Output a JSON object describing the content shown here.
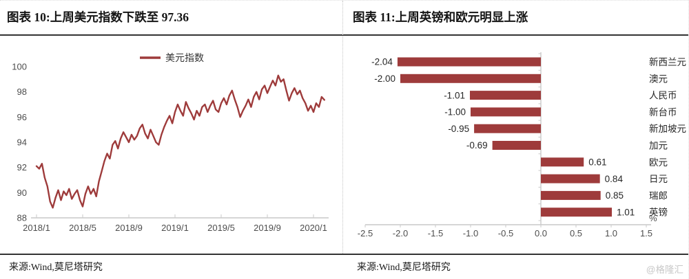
{
  "page": {
    "watermark": "@格隆汇"
  },
  "panels": [
    {
      "title": "图表 10:上周美元指数下跌至 97.36",
      "source": "来源:Wind,莫尼塔研究"
    },
    {
      "title": "图表 11:上周英镑和欧元明显上涨",
      "source": "来源:Wind,莫尼塔研究"
    }
  ],
  "chart_data": [
    {
      "type": "line",
      "title": "上周美元指数下跌至 97.36",
      "legend": "美元指数",
      "series": [
        {
          "name": "美元指数",
          "values": [
            92.1,
            91.9,
            92.3,
            91.2,
            90.5,
            89.3,
            88.8,
            89.6,
            90.2,
            89.4,
            90.1,
            89.8,
            90.3,
            89.5,
            89.9,
            90.2,
            89.4,
            88.9,
            89.9,
            90.5,
            89.9,
            90.3,
            89.7,
            90.9,
            91.7,
            92.5,
            93.1,
            92.7,
            93.8,
            94.1,
            93.5,
            94.3,
            94.8,
            94.4,
            94.0,
            94.6,
            94.2,
            94.5,
            95.1,
            95.4,
            94.7,
            94.3,
            95.0,
            94.5,
            94.0,
            93.8,
            94.6,
            95.2,
            95.7,
            96.1,
            95.5,
            96.4,
            97.0,
            96.5,
            96.1,
            97.2,
            96.7,
            96.3,
            95.8,
            96.5,
            96.1,
            96.8,
            97.0,
            96.4,
            96.9,
            97.3,
            96.6,
            96.4,
            97.1,
            97.5,
            97.0,
            97.7,
            98.1,
            97.4,
            96.8,
            96.0,
            96.5,
            96.9,
            97.4,
            96.8,
            97.6,
            98.0,
            97.4,
            98.2,
            98.5,
            97.9,
            98.4,
            98.9,
            98.5,
            99.3,
            98.8,
            99.0,
            98.1,
            97.3,
            97.9,
            98.3,
            97.8,
            98.1,
            97.5,
            97.1,
            96.5,
            96.9,
            96.4,
            97.1,
            96.8,
            97.6,
            97.36
          ]
        }
      ],
      "x_tick_labels": [
        "2018/1",
        "2018/5",
        "2018/9",
        "2019/1",
        "2019/5",
        "2019/9",
        "2020/1"
      ],
      "y_ticks": [
        100,
        98,
        96,
        94,
        92,
        90,
        88
      ],
      "ylim": [
        88,
        100
      ],
      "line_color": "#9E3B3B",
      "latest_value": 97.36
    },
    {
      "type": "bar",
      "orientation": "horizontal",
      "title": "上周英镑和欧元明显上涨",
      "categories": [
        "新西兰元",
        "澳元",
        "人民币",
        "新台币",
        "新加坡元",
        "加元",
        "欧元",
        "日元",
        "瑞郎",
        "英镑"
      ],
      "values": [
        -2.04,
        -2.0,
        -1.01,
        -1.0,
        -0.95,
        -0.69,
        0.61,
        0.84,
        0.85,
        1.01
      ],
      "value_labels": [
        "-2.04",
        "-2.00",
        "-1.01",
        "-1.00",
        "-0.95",
        "-0.69",
        "0.61",
        "0.84",
        "0.85",
        "1.01"
      ],
      "x_ticks": [
        -2.5,
        -2.0,
        -1.5,
        -1.0,
        -0.5,
        0.0,
        0.5,
        1.0,
        1.5
      ],
      "x_tick_labels": [
        "-2.5",
        "-2.0",
        "-1.5",
        "-1.0",
        "-0.5",
        "0.0",
        "0.5",
        "1.0",
        "1.5"
      ],
      "xlim": [
        -2.5,
        1.5
      ],
      "unit": "%",
      "bar_color": "#9E3B3B"
    }
  ]
}
